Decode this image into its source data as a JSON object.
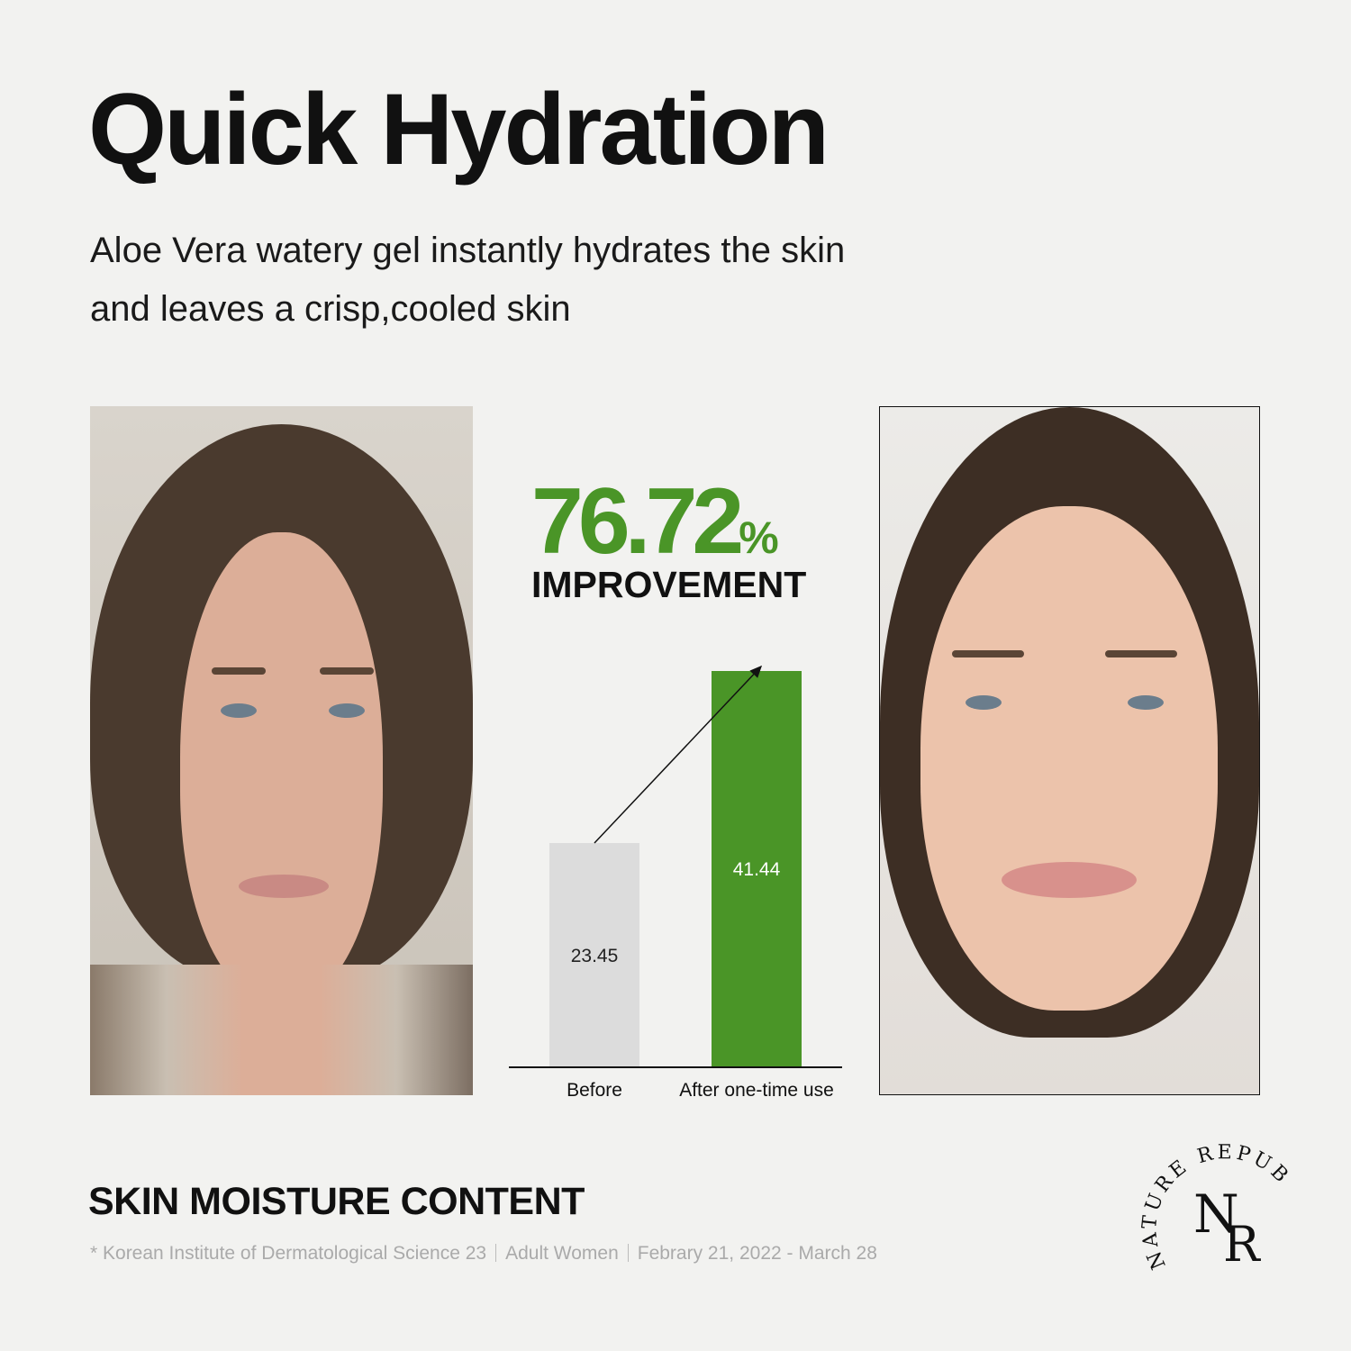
{
  "header": {
    "title": "Quick Hydration",
    "subtitle_line1": "Aloe Vera watery gel instantly hydrates the skin",
    "subtitle_line2": "and leaves a crisp,cooled skin"
  },
  "highlight": {
    "value": "76.72",
    "unit": "%",
    "label": "IMPROVEMENT"
  },
  "chart_data": {
    "type": "bar",
    "categories": [
      "Before",
      "After one-time use"
    ],
    "values": [
      23.45,
      41.44
    ],
    "value_labels": [
      "23.45",
      "41.44"
    ],
    "colors": [
      "#dcdcdc",
      "#4a9527"
    ],
    "ylim": [
      0,
      41.44
    ],
    "grid": false,
    "title": "",
    "xlabel": "",
    "ylabel": ""
  },
  "footer": {
    "section_title": "SKIN MOISTURE CONTENT",
    "footnote": [
      "* Korean Institute of Dermatological Science 23",
      "Adult Women",
      "Febrary 21, 2022 - March 28"
    ]
  },
  "logo": {
    "text": "NATURE REPUBLIC",
    "monogram": "NR"
  },
  "colors": {
    "accent": "#4a9527",
    "background": "#f2f2f0"
  }
}
